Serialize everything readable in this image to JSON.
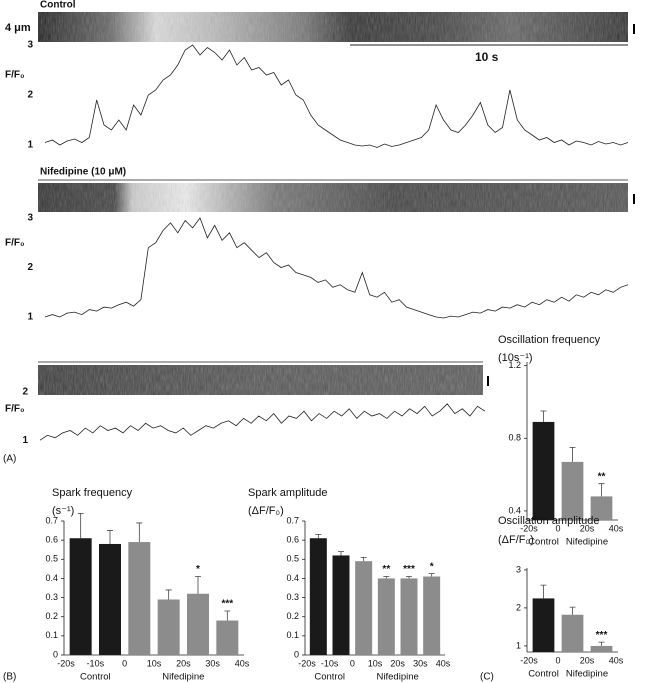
{
  "panel_labels": [
    "(A)",
    "(B)",
    "(C)"
  ],
  "chart_data": [
    {
      "type": "line",
      "title": "Control",
      "space_scale_label": "4 μm",
      "time_scale_label": "10 s",
      "y_label": "F/F₀",
      "ylim": [
        0.9,
        3.05
      ],
      "yticks": [
        1,
        2,
        3
      ],
      "color": "#222222",
      "values": [
        1.05,
        1.1,
        1.0,
        1.08,
        1.12,
        1.05,
        1.15,
        1.9,
        1.4,
        1.3,
        1.5,
        1.3,
        1.8,
        1.6,
        2.0,
        2.1,
        2.3,
        2.4,
        2.6,
        2.9,
        3.0,
        2.8,
        2.95,
        2.85,
        2.7,
        2.9,
        2.6,
        2.75,
        2.5,
        2.55,
        2.4,
        2.45,
        2.2,
        2.3,
        2.0,
        1.9,
        1.6,
        1.4,
        1.3,
        1.2,
        1.1,
        1.05,
        1.0,
        0.98,
        1.0,
        0.95,
        1.02,
        0.97,
        1.0,
        1.05,
        1.1,
        1.15,
        1.3,
        1.8,
        1.5,
        1.3,
        1.25,
        1.4,
        1.6,
        1.85,
        1.4,
        1.25,
        1.35,
        2.1,
        1.5,
        1.3,
        1.2,
        1.1,
        1.15,
        1.05,
        1.1,
        1.0,
        1.08,
        1.05,
        1.0,
        1.07,
        1.02,
        1.05,
        1.0,
        1.05
      ]
    },
    {
      "type": "line",
      "title": "Nifedipine (10 μM)",
      "y_label": "F/F₀",
      "ylim": [
        0.9,
        3.05
      ],
      "yticks": [
        1,
        2,
        3
      ],
      "color": "#222222",
      "values": [
        1.0,
        1.05,
        1.0,
        1.08,
        1.1,
        1.05,
        1.15,
        1.12,
        1.2,
        1.18,
        1.25,
        1.3,
        1.22,
        1.35,
        2.4,
        2.5,
        2.75,
        2.9,
        2.7,
        2.95,
        2.8,
        3.0,
        2.6,
        2.85,
        2.55,
        2.7,
        2.4,
        2.5,
        2.35,
        2.2,
        2.3,
        2.1,
        2.0,
        2.05,
        1.9,
        1.85,
        1.8,
        1.7,
        1.75,
        1.6,
        1.65,
        1.55,
        1.5,
        1.9,
        1.45,
        1.4,
        1.5,
        1.3,
        1.35,
        1.2,
        1.15,
        1.1,
        1.05,
        1.0,
        0.98,
        1.02,
        1.0,
        1.05,
        1.1,
        1.08,
        1.15,
        1.12,
        1.2,
        1.18,
        1.25,
        1.2,
        1.3,
        1.25,
        1.35,
        1.3,
        1.4,
        1.32,
        1.45,
        1.4,
        1.5,
        1.45,
        1.55,
        1.5,
        1.6,
        1.65
      ]
    },
    {
      "type": "line",
      "y_label": "F/F₀",
      "ylim": [
        0.9,
        2.1
      ],
      "yticks": [
        1,
        2
      ],
      "color": "#222222",
      "values": [
        1.0,
        1.1,
        1.05,
        1.15,
        1.2,
        1.1,
        1.25,
        1.15,
        1.3,
        1.2,
        1.25,
        1.15,
        1.3,
        1.2,
        1.35,
        1.25,
        1.3,
        1.2,
        1.15,
        1.25,
        1.1,
        1.2,
        1.3,
        1.25,
        1.35,
        1.4,
        1.3,
        1.45,
        1.35,
        1.5,
        1.4,
        1.55,
        1.35,
        1.5,
        1.45,
        1.6,
        1.4,
        1.55,
        1.45,
        1.6,
        1.5,
        1.65,
        1.45,
        1.6,
        1.5,
        1.55,
        1.45,
        1.6,
        1.5,
        1.65,
        1.55,
        1.7,
        1.5,
        1.6,
        1.75,
        1.55,
        1.65,
        1.5,
        1.7,
        1.6
      ]
    },
    {
      "type": "bar",
      "title": "Oscillation frequency",
      "y_label": "(10s⁻¹)",
      "ylim": [
        0.35,
        1.22
      ],
      "yticks": [
        0.4,
        0.8,
        1.2
      ],
      "x_labels": [
        "-20s",
        "0",
        "20s",
        "40s"
      ],
      "series": [
        {
          "name": "Control",
          "color": "#1a1a1a",
          "values": [
            0.89
          ],
          "errors": [
            0.06
          ],
          "significance": [
            null
          ]
        },
        {
          "name": "Nifedipine",
          "color": "#8c8c8c",
          "values": [
            0.67,
            0.48
          ],
          "errors": [
            0.08,
            0.07
          ],
          "significance": [
            null,
            "**"
          ]
        }
      ]
    },
    {
      "type": "bar",
      "title": "Spark frequency",
      "y_label": "(s⁻¹)",
      "ylim": [
        0,
        0.7
      ],
      "yticks": [
        0,
        0.1,
        0.2,
        0.3,
        0.4,
        0.5,
        0.6,
        0.7
      ],
      "x_labels": [
        "-20s",
        "-10s",
        "0",
        "10s",
        "20s",
        "30s",
        "40s"
      ],
      "series": [
        {
          "name": "Control",
          "color": "#1a1a1a",
          "values": [
            0.61,
            0.58
          ],
          "errors": [
            0.13,
            0.07
          ],
          "significance": [
            null,
            null
          ]
        },
        {
          "name": "Nifedipine",
          "color": "#8c8c8c",
          "values": [
            0.59,
            0.29,
            0.32,
            0.18
          ],
          "errors": [
            0.1,
            0.05,
            0.09,
            0.05
          ],
          "significance": [
            null,
            null,
            "*",
            "***"
          ]
        }
      ]
    },
    {
      "type": "bar",
      "title": "Spark amplitude",
      "y_label": "(ΔF/F₀)",
      "ylim": [
        0,
        0.7
      ],
      "yticks": [
        0,
        0.1,
        0.2,
        0.3,
        0.4,
        0.5,
        0.6,
        0.7
      ],
      "x_labels": [
        "-20s",
        "-10s",
        "0",
        "10s",
        "20s",
        "30s",
        "40s"
      ],
      "series": [
        {
          "name": "Control",
          "color": "#1a1a1a",
          "values": [
            0.61,
            0.52
          ],
          "errors": [
            0.02,
            0.02
          ],
          "significance": [
            null,
            null
          ]
        },
        {
          "name": "Nifedipine",
          "color": "#8c8c8c",
          "values": [
            0.49,
            0.4,
            0.4,
            0.41
          ],
          "errors": [
            0.02,
            0.01,
            0.01,
            0.015
          ],
          "significance": [
            null,
            "**",
            "***",
            "*"
          ]
        }
      ]
    },
    {
      "type": "bar",
      "title": "Oscillation amplitude",
      "y_label": "(ΔF/F₀)",
      "ylim": [
        0.84,
        3.05
      ],
      "yticks": [
        1,
        2,
        3
      ],
      "x_labels": [
        "-20s",
        "0",
        "20s",
        "40s"
      ],
      "series": [
        {
          "name": "Control",
          "color": "#1a1a1a",
          "values": [
            2.25
          ],
          "errors": [
            0.35
          ],
          "significance": [
            null
          ]
        },
        {
          "name": "Nifedipine",
          "color": "#8c8c8c",
          "values": [
            1.82,
            1.0
          ],
          "errors": [
            0.2,
            0.1
          ],
          "significance": [
            null,
            "***"
          ]
        }
      ]
    }
  ]
}
